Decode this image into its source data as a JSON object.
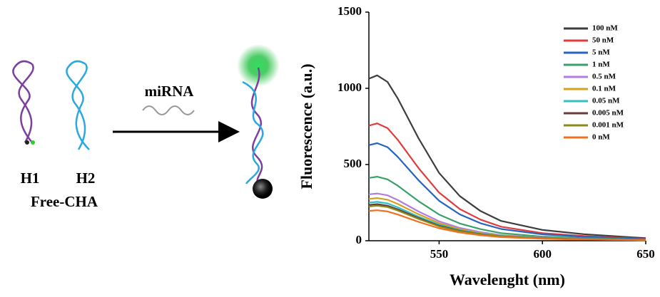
{
  "diagram": {
    "labels": [
      "H1",
      "H2",
      "Free-CHA"
    ],
    "reagent": "miRNA"
  },
  "chart_data": {
    "type": "line",
    "xlabel": "Wavelenght (nm)",
    "ylabel": "Fluorescence (a.u.)",
    "xlim": [
      516,
      650
    ],
    "ylim": [
      0,
      1500
    ],
    "xticks": [
      550,
      600,
      650
    ],
    "yticks": [
      0,
      500,
      1000,
      1500
    ],
    "x": [
      516,
      520,
      525,
      530,
      540,
      550,
      560,
      570,
      580,
      600,
      620,
      650
    ],
    "legend": "upper right",
    "series": [
      {
        "name": "100 nM",
        "color": "#3d3d3d",
        "values": [
          1063,
          1085,
          1042,
          933,
          673,
          445,
          293,
          195,
          130,
          71,
          43,
          17
        ]
      },
      {
        "name": "50 nM",
        "color": "#e03c3c",
        "values": [
          755,
          770,
          739,
          662,
          477,
          316,
          208,
          139,
          92,
          50,
          31,
          12
        ]
      },
      {
        "name": "5 nM",
        "color": "#2464c0",
        "values": [
          627,
          640,
          614,
          550,
          397,
          262,
          173,
          115,
          77,
          42,
          26,
          10
        ]
      },
      {
        "name": "1 nM",
        "color": "#3aa06a",
        "values": [
          412,
          420,
          403,
          361,
          260,
          172,
          113,
          76,
          50,
          27,
          17,
          7
        ]
      },
      {
        "name": "0.5 nM",
        "color": "#b07ee0",
        "values": [
          304,
          310,
          298,
          267,
          192,
          127,
          84,
          56,
          37,
          20,
          12,
          5
        ]
      },
      {
        "name": "0.1 nM",
        "color": "#d4a020",
        "values": [
          274,
          280,
          269,
          241,
          174,
          115,
          76,
          50,
          34,
          18,
          11,
          4
        ]
      },
      {
        "name": "0.05 nM",
        "color": "#30c0c0",
        "values": [
          250,
          255,
          245,
          219,
          158,
          105,
          69,
          46,
          31,
          17,
          10,
          4
        ]
      },
      {
        "name": "0.005 nM",
        "color": "#6b3a3a",
        "values": [
          235,
          240,
          230,
          206,
          149,
          98,
          65,
          43,
          29,
          16,
          10,
          4
        ]
      },
      {
        "name": "0.001 nM",
        "color": "#8a8a1a",
        "values": [
          225,
          230,
          221,
          198,
          143,
          94,
          62,
          41,
          28,
          15,
          9,
          4
        ]
      },
      {
        "name": "0 nM",
        "color": "#f07020",
        "values": [
          196,
          200,
          192,
          172,
          124,
          82,
          54,
          36,
          24,
          13,
          8,
          3
        ]
      }
    ]
  }
}
